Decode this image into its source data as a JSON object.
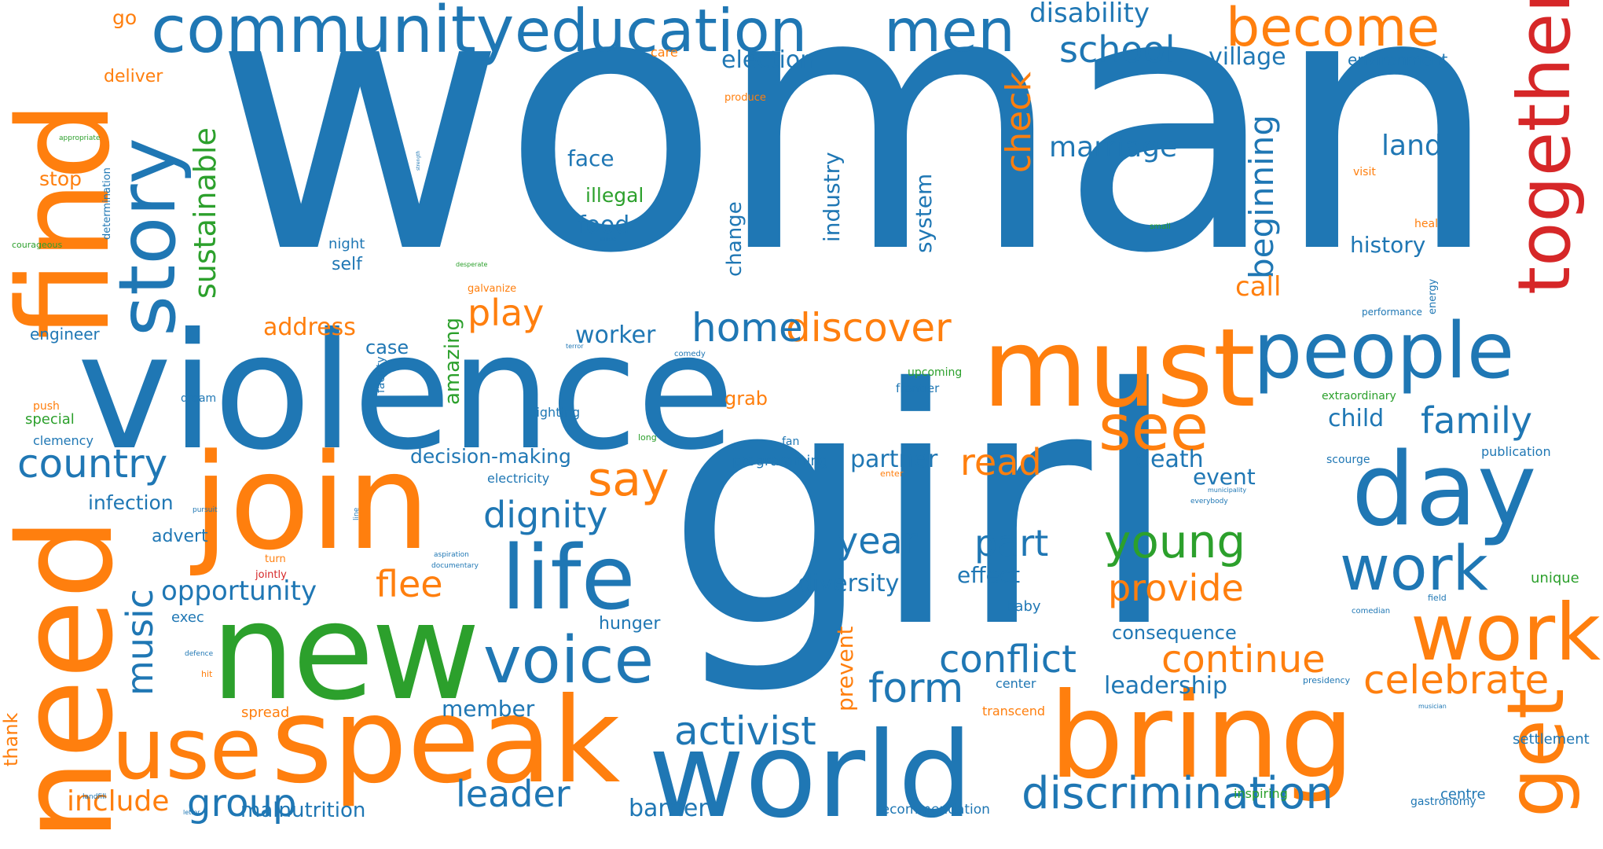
{
  "colors": {
    "blue": "#1f77b4",
    "orange": "#ff7f0e",
    "green": "#2ca02c",
    "red": "#d62728"
  },
  "words": [
    {
      "text": "woman",
      "color": "blue"
    },
    {
      "text": "girl",
      "color": "blue"
    },
    {
      "text": "violence",
      "color": "blue"
    },
    {
      "text": "find",
      "color": "orange"
    },
    {
      "text": "need",
      "color": "orange"
    },
    {
      "text": "join",
      "color": "orange"
    },
    {
      "text": "new",
      "color": "green"
    },
    {
      "text": "speak",
      "color": "orange"
    },
    {
      "text": "world",
      "color": "blue"
    },
    {
      "text": "bring",
      "color": "orange"
    },
    {
      "text": "must",
      "color": "orange"
    },
    {
      "text": "day",
      "color": "blue"
    },
    {
      "text": "people",
      "color": "blue"
    },
    {
      "text": "story",
      "color": "blue"
    },
    {
      "text": "together",
      "color": "red"
    },
    {
      "text": "use",
      "color": "orange"
    },
    {
      "text": "life",
      "color": "blue"
    },
    {
      "text": "work",
      "color": "orange"
    },
    {
      "text": "work",
      "color": "blue"
    },
    {
      "text": "get",
      "color": "orange"
    },
    {
      "text": "community",
      "color": "blue"
    },
    {
      "text": "education",
      "color": "blue"
    },
    {
      "text": "men",
      "color": "blue"
    },
    {
      "text": "become",
      "color": "orange"
    },
    {
      "text": "voice",
      "color": "blue"
    },
    {
      "text": "see",
      "color": "orange"
    },
    {
      "text": "say",
      "color": "orange"
    },
    {
      "text": "young",
      "color": "green"
    },
    {
      "text": "discrimination",
      "color": "blue"
    },
    {
      "text": "celebrate",
      "color": "orange"
    },
    {
      "text": "continue",
      "color": "orange"
    },
    {
      "text": "conflict",
      "color": "blue"
    },
    {
      "text": "activist",
      "color": "blue"
    },
    {
      "text": "discover",
      "color": "orange"
    },
    {
      "text": "home",
      "color": "blue"
    },
    {
      "text": "country",
      "color": "blue"
    },
    {
      "text": "school",
      "color": "blue"
    },
    {
      "text": "dignity",
      "color": "blue"
    },
    {
      "text": "family",
      "color": "blue"
    },
    {
      "text": "form",
      "color": "blue"
    },
    {
      "text": "part",
      "color": "blue"
    },
    {
      "text": "year",
      "color": "blue"
    },
    {
      "text": "provide",
      "color": "orange"
    },
    {
      "text": "group",
      "color": "blue"
    },
    {
      "text": "leader",
      "color": "blue"
    },
    {
      "text": "check",
      "color": "orange"
    },
    {
      "text": "music",
      "color": "blue"
    },
    {
      "text": "sustainable",
      "color": "green"
    },
    {
      "text": "beginning",
      "color": "blue"
    },
    {
      "text": "read",
      "color": "orange"
    },
    {
      "text": "play",
      "color": "orange"
    },
    {
      "text": "flee",
      "color": "orange"
    },
    {
      "text": "opportunity",
      "color": "blue"
    },
    {
      "text": "include",
      "color": "orange"
    },
    {
      "text": "marriage",
      "color": "blue"
    },
    {
      "text": "disability",
      "color": "blue"
    },
    {
      "text": "land",
      "color": "blue"
    },
    {
      "text": "history",
      "color": "blue"
    },
    {
      "text": "death",
      "color": "blue"
    },
    {
      "text": "partner",
      "color": "blue"
    },
    {
      "text": "leadership",
      "color": "blue"
    },
    {
      "text": "diversity",
      "color": "blue"
    },
    {
      "text": "worker",
      "color": "blue"
    },
    {
      "text": "village",
      "color": "blue"
    },
    {
      "text": "election",
      "color": "blue"
    },
    {
      "text": "address",
      "color": "orange"
    },
    {
      "text": "call",
      "color": "orange"
    },
    {
      "text": "child",
      "color": "blue"
    },
    {
      "text": "member",
      "color": "blue"
    },
    {
      "text": "barrier",
      "color": "blue"
    },
    {
      "text": "malnutrition",
      "color": "blue"
    },
    {
      "text": "event",
      "color": "blue"
    },
    {
      "text": "effect",
      "color": "blue"
    },
    {
      "text": "consequence",
      "color": "blue"
    },
    {
      "text": "decision-making",
      "color": "blue"
    },
    {
      "text": "infection",
      "color": "blue"
    },
    {
      "text": "face",
      "color": "blue"
    },
    {
      "text": "food",
      "color": "blue"
    },
    {
      "text": "illegal",
      "color": "green"
    },
    {
      "text": "industry",
      "color": "blue"
    },
    {
      "text": "system",
      "color": "blue"
    },
    {
      "text": "change",
      "color": "blue"
    },
    {
      "text": "prevent",
      "color": "orange"
    },
    {
      "text": "amazing",
      "color": "green"
    },
    {
      "text": "case",
      "color": "blue"
    },
    {
      "text": "grab",
      "color": "orange"
    },
    {
      "text": "hunger",
      "color": "blue"
    },
    {
      "text": "advert",
      "color": "blue"
    },
    {
      "text": "deliver",
      "color": "orange"
    },
    {
      "text": "go",
      "color": "orange"
    },
    {
      "text": "stop",
      "color": "orange"
    },
    {
      "text": "engineer",
      "color": "blue"
    },
    {
      "text": "environment",
      "color": "blue"
    },
    {
      "text": "night",
      "color": "blue"
    },
    {
      "text": "self",
      "color": "blue"
    },
    {
      "text": "special",
      "color": "green"
    },
    {
      "text": "clemency",
      "color": "blue"
    },
    {
      "text": "thank",
      "color": "orange"
    },
    {
      "text": "exec",
      "color": "blue"
    },
    {
      "text": "spread",
      "color": "orange"
    },
    {
      "text": "lighting",
      "color": "blue"
    },
    {
      "text": "electricity",
      "color": "blue"
    },
    {
      "text": "programming",
      "color": "blue"
    },
    {
      "text": "fan",
      "color": "blue"
    },
    {
      "text": "baby",
      "color": "blue"
    },
    {
      "text": "center",
      "color": "blue"
    },
    {
      "text": "transcend",
      "color": "orange"
    },
    {
      "text": "inspiring",
      "color": "green"
    },
    {
      "text": "centre",
      "color": "blue"
    },
    {
      "text": "gastronomy",
      "color": "blue"
    },
    {
      "text": "recommendation",
      "color": "blue"
    },
    {
      "text": "settlement",
      "color": "blue"
    },
    {
      "text": "unique",
      "color": "green"
    },
    {
      "text": "publication",
      "color": "blue"
    },
    {
      "text": "scourge",
      "color": "blue"
    },
    {
      "text": "extraordinary",
      "color": "green"
    },
    {
      "text": "frontier",
      "color": "blue"
    },
    {
      "text": "upcoming",
      "color": "green"
    },
    {
      "text": "dream",
      "color": "blue"
    },
    {
      "text": "push",
      "color": "orange"
    },
    {
      "text": "facility",
      "color": "blue"
    },
    {
      "text": "visit",
      "color": "orange"
    },
    {
      "text": "heal",
      "color": "orange"
    },
    {
      "text": "care",
      "color": "orange"
    },
    {
      "text": "produce",
      "color": "orange"
    },
    {
      "text": "energy",
      "color": "blue"
    },
    {
      "text": "determination",
      "color": "blue"
    },
    {
      "text": "courageous",
      "color": "green"
    },
    {
      "text": "appropriate",
      "color": "green"
    },
    {
      "text": "galvanize",
      "color": "orange"
    },
    {
      "text": "jointly",
      "color": "red"
    },
    {
      "text": "turn",
      "color": "orange"
    },
    {
      "text": "performance",
      "color": "blue"
    },
    {
      "text": "small",
      "color": "green"
    },
    {
      "text": "minute",
      "color": "blue"
    },
    {
      "text": "strength",
      "color": "blue"
    },
    {
      "text": "desperate",
      "color": "green"
    },
    {
      "text": "terror",
      "color": "blue"
    },
    {
      "text": "comedy",
      "color": "blue"
    },
    {
      "text": "long",
      "color": "green"
    },
    {
      "text": "enter",
      "color": "orange"
    },
    {
      "text": "municipality",
      "color": "blue"
    },
    {
      "text": "everybody",
      "color": "blue"
    },
    {
      "text": "pursuit",
      "color": "blue"
    },
    {
      "text": "line",
      "color": "blue"
    },
    {
      "text": "aspiration",
      "color": "blue"
    },
    {
      "text": "documentary",
      "color": "blue"
    },
    {
      "text": "defence",
      "color": "blue"
    },
    {
      "text": "hit",
      "color": "orange"
    },
    {
      "text": "landfill",
      "color": "blue"
    },
    {
      "text": "letter",
      "color": "blue"
    },
    {
      "text": "field",
      "color": "blue"
    },
    {
      "text": "comedian",
      "color": "blue"
    },
    {
      "text": "presidency",
      "color": "blue"
    },
    {
      "text": "musician",
      "color": "blue"
    }
  ]
}
